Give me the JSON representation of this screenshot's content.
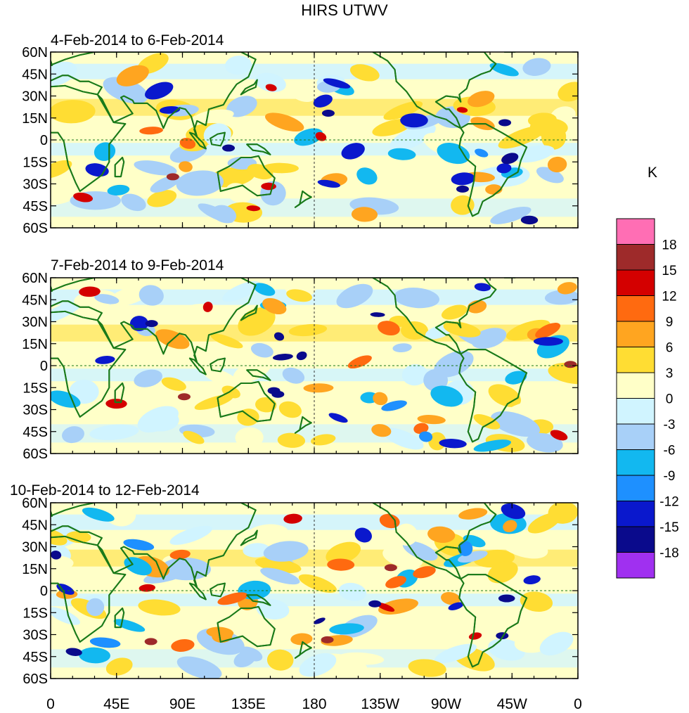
{
  "title": "HIRS UTWV",
  "panels": [
    {
      "label": "4-Feb-2014 to 6-Feb-2014"
    },
    {
      "label": "7-Feb-2014 to 9-Feb-2014"
    },
    {
      "label": "10-Feb-2014 to 12-Feb-2014"
    }
  ],
  "y_tick_labels": [
    "60N",
    "45N",
    "30N",
    "15N",
    "0",
    "15S",
    "30S",
    "45S",
    "60S"
  ],
  "x_tick_labels": [
    "0",
    "45E",
    "90E",
    "135E",
    "180",
    "135W",
    "90W",
    "45W",
    "0"
  ],
  "colorbar": {
    "unit": "K",
    "tick_labels": [
      "18",
      "15",
      "12",
      "9",
      "6",
      "3",
      "0",
      "-3",
      "-6",
      "-9",
      "-12",
      "-15",
      "-18"
    ],
    "colors": [
      "#ff6eb4",
      "#9e2a2a",
      "#d40000",
      "#ff6a10",
      "#ffa520",
      "#ffdd33",
      "#ffffc8",
      "#d0f4ff",
      "#a8d0f8",
      "#12b8f0",
      "#1e90ff",
      "#0a18cd",
      "#0a0a8c",
      "#a030f0"
    ]
  },
  "palette": {
    "coast": "#1a7a1a",
    "frame": "#000000"
  }
}
